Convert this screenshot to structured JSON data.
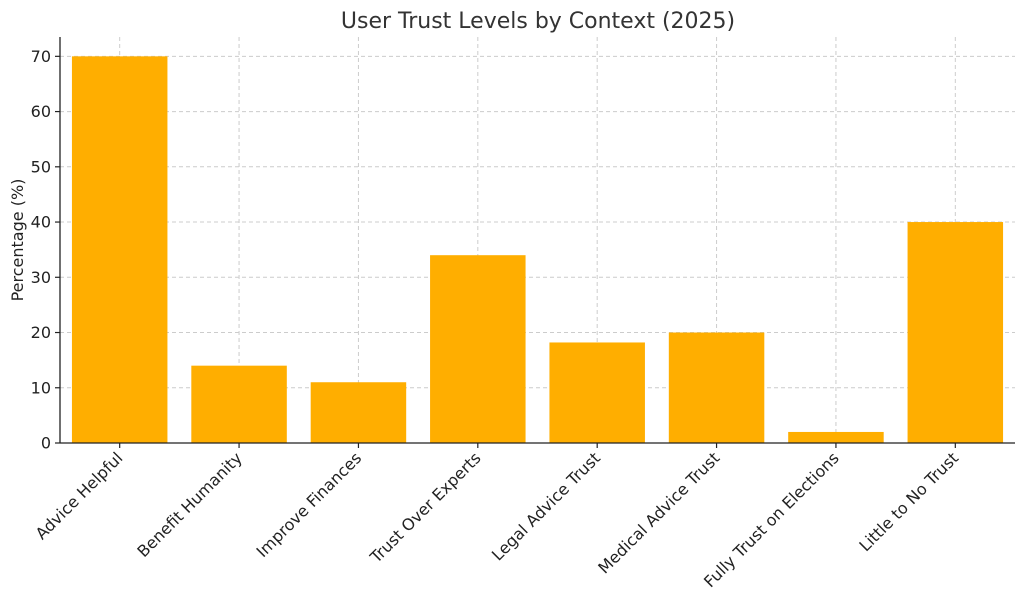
{
  "chart_data": {
    "type": "bar",
    "title": "User Trust Levels by Context (2025)",
    "xlabel": "",
    "ylabel": "Percentage (%)",
    "categories": [
      "Advice Helpful",
      "Benefit Humanity",
      "Improve Finances",
      "Trust Over Experts",
      "Legal Advice Trust",
      "Medical Advice Trust",
      "Fully Trust on Elections",
      "Little to No Trust"
    ],
    "values": [
      70,
      14,
      11,
      34,
      18.2,
      20,
      2,
      40
    ],
    "ylim": [
      0,
      73.5
    ],
    "yticks": [
      0,
      10,
      20,
      30,
      40,
      50,
      60,
      70
    ],
    "grid": true,
    "bar_color": "#FFAE00"
  }
}
